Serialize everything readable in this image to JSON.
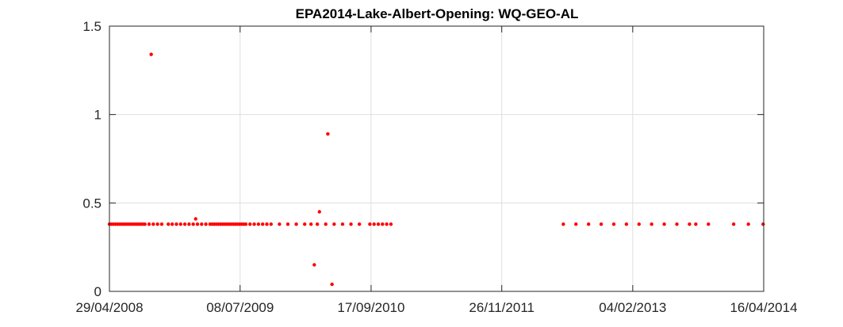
{
  "chart_data": {
    "type": "scatter",
    "title": "EPA2014-Lake-Albert-Opening: WQ-GEO-AL",
    "xlabel": "",
    "ylabel": "",
    "x_axis_type": "date",
    "xlim": [
      "2008-04-29",
      "2014-04-16"
    ],
    "ylim": [
      0,
      1.5
    ],
    "x_ticks": [
      "2008-04-29",
      "2009-07-08",
      "2010-09-17",
      "2011-11-26",
      "2013-02-04",
      "2014-04-16"
    ],
    "x_tick_labels": [
      "29/04/2008",
      "08/07/2009",
      "17/09/2010",
      "26/11/2011",
      "04/02/2013",
      "16/04/2014"
    ],
    "y_ticks": [
      0,
      0.5,
      1,
      1.5
    ],
    "y_tick_labels": [
      "0",
      "0.5",
      "1",
      "1.5"
    ],
    "grid": true,
    "marker_color": "#ff0000",
    "series": [
      {
        "x": [
          "2008-04-29",
          "2008-05-05",
          "2008-05-12",
          "2008-05-19",
          "2008-05-26",
          "2008-06-02",
          "2008-06-09",
          "2008-06-16",
          "2008-06-23",
          "2008-06-30",
          "2008-07-07",
          "2008-07-14",
          "2008-07-21",
          "2008-07-28",
          "2008-08-04",
          "2008-08-11",
          "2008-08-18",
          "2008-08-25",
          "2008-09-08",
          "2008-09-22",
          "2008-10-06",
          "2008-10-20",
          "2008-11-11",
          "2008-11-24",
          "2008-12-08",
          "2008-12-22",
          "2009-01-05",
          "2009-01-19",
          "2009-02-02",
          "2009-02-16",
          "2009-03-02",
          "2009-03-16",
          "2009-03-30",
          "2009-04-06",
          "2009-04-13",
          "2009-04-20",
          "2009-04-27",
          "2009-05-04",
          "2009-05-11",
          "2009-05-18",
          "2009-05-25",
          "2009-06-01",
          "2009-06-08",
          "2009-06-15",
          "2009-06-22",
          "2009-06-29",
          "2009-07-06",
          "2009-07-13",
          "2009-07-20",
          "2009-07-27",
          "2009-08-10",
          "2009-08-24",
          "2009-09-07",
          "2009-09-21",
          "2009-10-05",
          "2009-10-19",
          "2009-11-16",
          "2009-12-14",
          "2010-01-11",
          "2010-02-08",
          "2010-03-01",
          "2010-03-22",
          "2010-04-19",
          "2010-05-17",
          "2010-06-14",
          "2010-07-12",
          "2010-08-09",
          "2010-09-13",
          "2010-09-27",
          "2010-10-11",
          "2010-10-25",
          "2010-11-08",
          "2010-11-22",
          "2012-06-18",
          "2012-07-30",
          "2012-09-10",
          "2012-10-22",
          "2012-12-03",
          "2013-01-14",
          "2013-02-25",
          "2013-04-08",
          "2013-05-20",
          "2013-07-01",
          "2013-08-12",
          "2013-09-02",
          "2013-10-14",
          "2014-01-06",
          "2014-02-24",
          "2014-04-14"
        ],
        "y": [
          0.38,
          0.38,
          0.38,
          0.38,
          0.38,
          0.38,
          0.38,
          0.38,
          0.38,
          0.38,
          0.38,
          0.38,
          0.38,
          0.38,
          0.38,
          0.38,
          0.38,
          0.38,
          0.38,
          0.38,
          0.38,
          0.38,
          0.38,
          0.38,
          0.38,
          0.38,
          0.38,
          0.38,
          0.38,
          0.38,
          0.38,
          0.38,
          0.38,
          0.38,
          0.38,
          0.38,
          0.38,
          0.38,
          0.38,
          0.38,
          0.38,
          0.38,
          0.38,
          0.38,
          0.38,
          0.38,
          0.38,
          0.38,
          0.38,
          0.38,
          0.38,
          0.38,
          0.38,
          0.38,
          0.38,
          0.38,
          0.38,
          0.38,
          0.38,
          0.38,
          0.38,
          0.38,
          0.38,
          0.38,
          0.38,
          0.38,
          0.38,
          0.38,
          0.38,
          0.38,
          0.38,
          0.38,
          0.38,
          0.38,
          0.38,
          0.38,
          0.38,
          0.38,
          0.38,
          0.38,
          0.38,
          0.38,
          0.38,
          0.38,
          0.38,
          0.38,
          0.38,
          0.38,
          0.38
        ]
      },
      {
        "x": [
          "2008-09-15",
          "2009-02-10",
          "2010-03-12",
          "2010-03-29",
          "2010-04-26",
          "2010-05-10"
        ],
        "y": [
          1.34,
          0.41,
          0.15,
          0.45,
          0.89,
          0.04
        ]
      }
    ]
  }
}
